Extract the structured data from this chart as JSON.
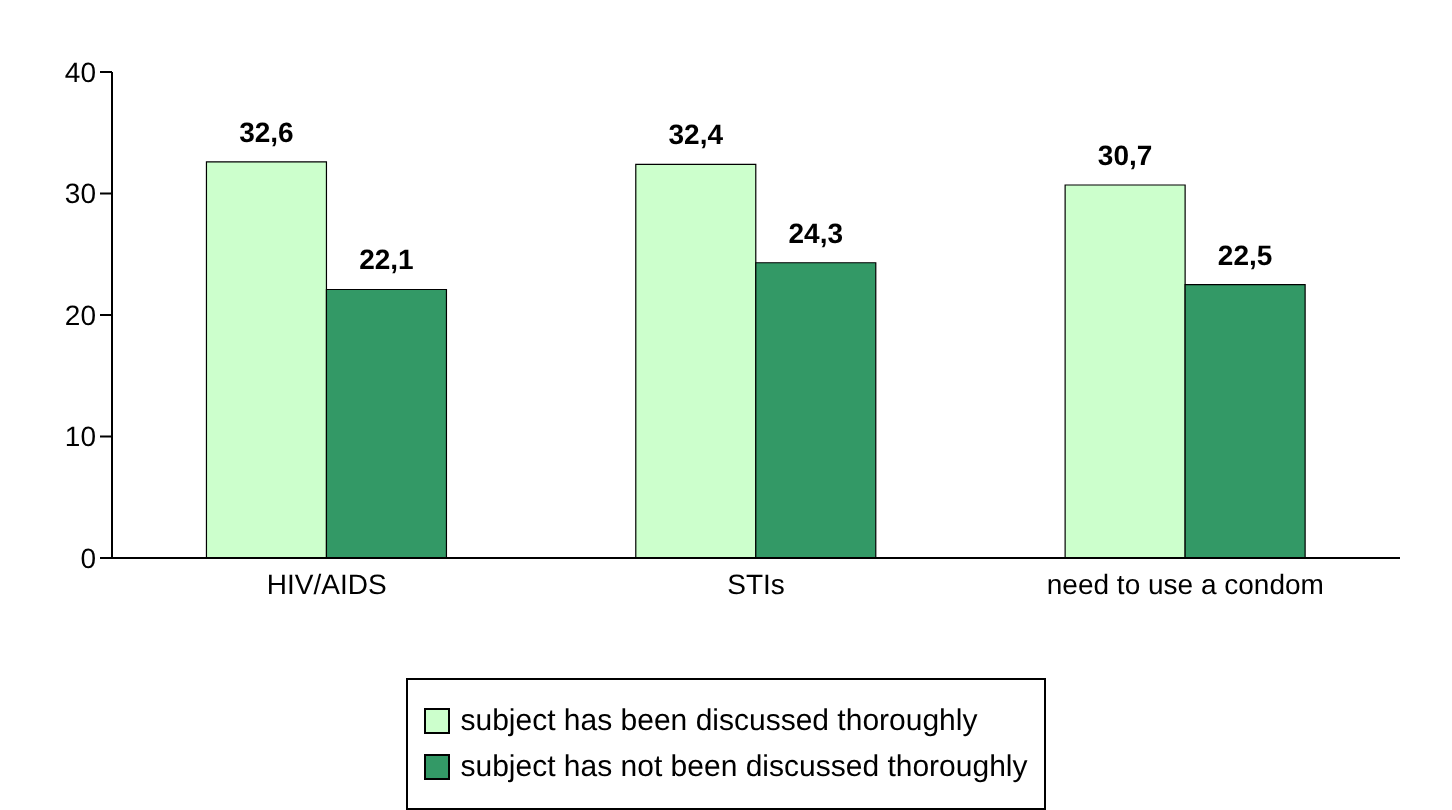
{
  "chart_data": {
    "type": "bar",
    "categories": [
      "HIV/AIDS",
      "STIs",
      "need to use a condom"
    ],
    "series": [
      {
        "name": "subject has been discussed thoroughly",
        "color": "#ccffcc",
        "values": [
          32.6,
          32.4,
          30.7
        ],
        "value_labels": [
          "32,6",
          "32,4",
          "30,7"
        ]
      },
      {
        "name": "subject has not been discussed thoroughly",
        "color": "#339966",
        "values": [
          22.1,
          24.3,
          22.5
        ],
        "value_labels": [
          "22,1",
          "24,3",
          "22,5"
        ]
      }
    ],
    "ylim": [
      0,
      40
    ],
    "yticks": [
      0,
      10,
      20,
      30,
      40
    ],
    "grid": false,
    "legend": "bottom"
  }
}
